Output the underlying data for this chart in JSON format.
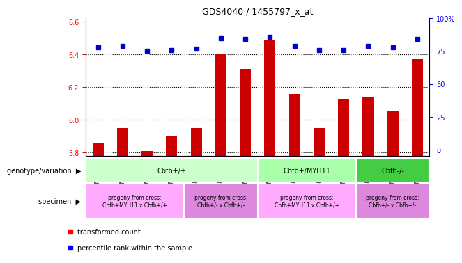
{
  "title": "GDS4040 / 1455797_x_at",
  "samples": [
    "GSM475934",
    "GSM475935",
    "GSM475936",
    "GSM475937",
    "GSM475941",
    "GSM475942",
    "GSM475943",
    "GSM475930",
    "GSM475931",
    "GSM475932",
    "GSM475933",
    "GSM475938",
    "GSM475939",
    "GSM475940"
  ],
  "bar_values": [
    5.86,
    5.95,
    5.81,
    5.9,
    5.95,
    6.4,
    6.31,
    6.49,
    6.16,
    5.95,
    6.13,
    6.14,
    6.05,
    6.37
  ],
  "dot_values": [
    78,
    79,
    75,
    76,
    77,
    85,
    84,
    86,
    79,
    76,
    76,
    79,
    78,
    84
  ],
  "bar_color": "#cc0000",
  "dot_color": "#0000cc",
  "ylim_left": [
    5.78,
    6.62
  ],
  "ylim_right": [
    -4.76,
    100
  ],
  "yticks_left": [
    5.8,
    6.0,
    6.2,
    6.4,
    6.6
  ],
  "yticks_right": [
    0,
    25,
    50,
    75,
    100
  ],
  "geno_groups": [
    {
      "label": "Cbfb+/+",
      "start": 0,
      "end": 7,
      "color": "#ccffcc"
    },
    {
      "label": "Cbfb+/MYH11",
      "start": 7,
      "end": 11,
      "color": "#aaffaa"
    },
    {
      "label": "Cbfb-/-",
      "start": 11,
      "end": 14,
      "color": "#44cc44"
    }
  ],
  "spec_groups": [
    {
      "label": "progeny from cross:\nCbfb+MYH11 x Cbfb+/+",
      "start": 0,
      "end": 4,
      "color": "#ffaaff"
    },
    {
      "label": "progeny from cross:\nCbfb+/- x Cbfb+/-",
      "start": 4,
      "end": 7,
      "color": "#dd88dd"
    },
    {
      "label": "progeny from cross:\nCbfb+MYH11 x Cbfb+/+",
      "start": 7,
      "end": 11,
      "color": "#ffaaff"
    },
    {
      "label": "progeny from cross:\nCbfb+/- x Cbfb+/-",
      "start": 11,
      "end": 14,
      "color": "#dd88dd"
    }
  ],
  "legend_red": "transformed count",
  "legend_blue": "percentile rank within the sample",
  "geno_label": "genotype/variation",
  "spec_label": "specimen"
}
